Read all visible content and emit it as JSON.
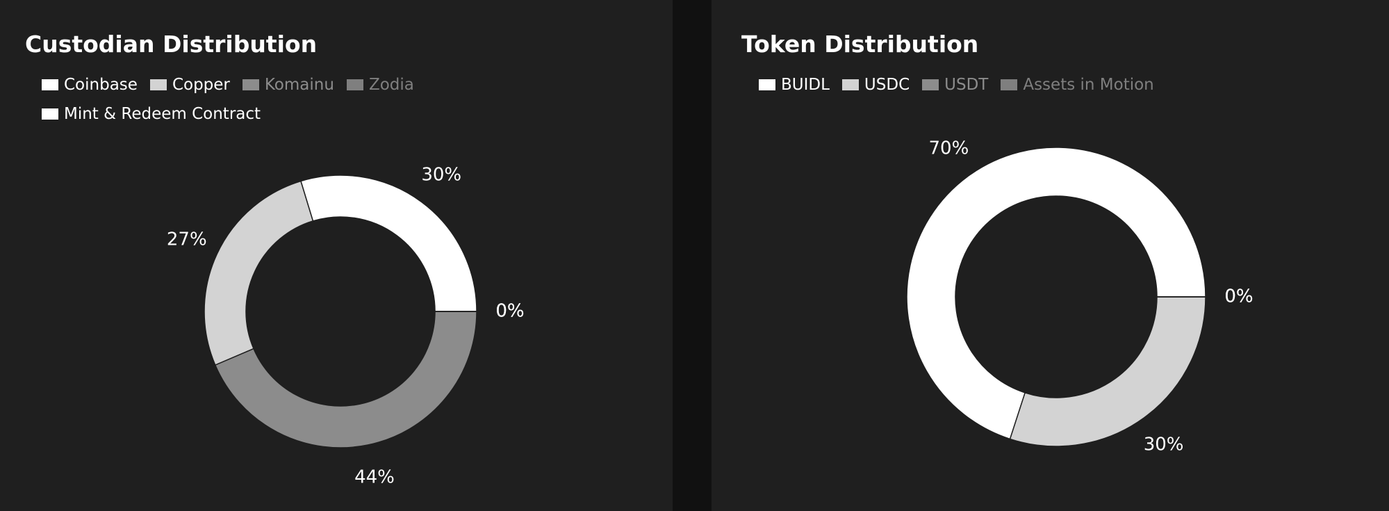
{
  "chart_data": [
    {
      "type": "donut",
      "title": "Custodian Distribution",
      "categories": [
        "Coinbase",
        "Copper",
        "Komainu",
        "Zodia",
        "Mint & Redeem Contract"
      ],
      "values": [
        30,
        27,
        44,
        0,
        0
      ],
      "value_labels": [
        "30%",
        "27%",
        "44%",
        "0%",
        "0%"
      ],
      "colors": [
        "#ffffff",
        "#d3d3d3",
        "#8c8c8c",
        "#7f7f7f",
        "#ffffff"
      ]
    },
    {
      "type": "donut",
      "title": "Token Distribution",
      "categories": [
        "BUIDL",
        "USDC",
        "USDT",
        "Assets in Motion"
      ],
      "values": [
        70,
        30,
        0,
        0
      ],
      "value_labels": [
        "70%",
        "30%",
        "0%",
        "0%"
      ],
      "colors": [
        "#ffffff",
        "#d3d3d3",
        "#8c8c8c",
        "#7f7f7f"
      ]
    }
  ]
}
